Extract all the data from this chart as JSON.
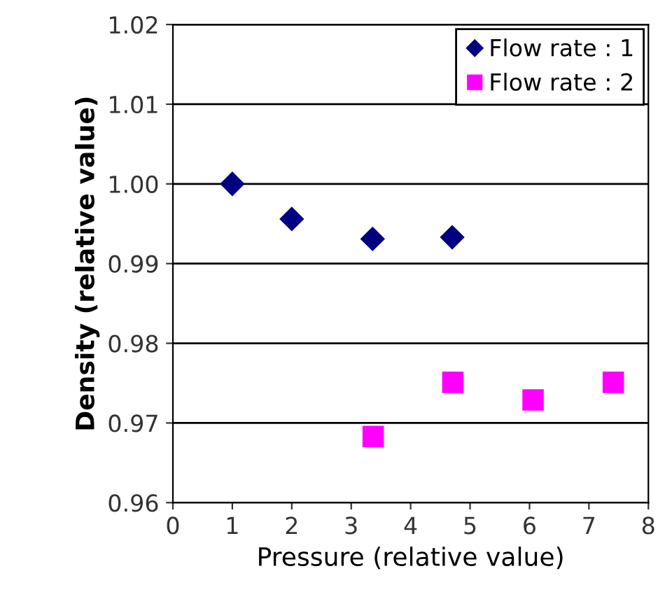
{
  "chart_data": {
    "type": "scatter",
    "xlabel": "Pressure (relative value)",
    "ylabel": "Density (relative value)",
    "xlim": [
      0,
      8
    ],
    "xticks": [
      0,
      1,
      2,
      3,
      4,
      5,
      6,
      7,
      8
    ],
    "ylim": [
      0.96,
      1.02
    ],
    "yticks": [
      {
        "value": 0.96,
        "label": "0.96"
      },
      {
        "value": 0.97,
        "label": "0.97"
      },
      {
        "value": 0.98,
        "label": "0.98"
      },
      {
        "value": 0.99,
        "label": "0.99"
      },
      {
        "value": 1.0,
        "label": "1.00"
      },
      {
        "value": 1.01,
        "label": "1.01"
      },
      {
        "value": 1.02,
        "label": "1.02"
      }
    ],
    "grid": "y",
    "legend": "top right",
    "series": [
      {
        "name": "Flow rate : 1",
        "color": "#000080",
        "marker": "diamond",
        "x": [
          1.0,
          2.0,
          3.36,
          4.7
        ],
        "values": [
          1.0,
          0.9956,
          0.9931,
          0.9933
        ]
      },
      {
        "name": "Flow rate : 2",
        "color": "#ff00ff",
        "marker": "square",
        "x": [
          3.37,
          4.71,
          6.06,
          7.41
        ],
        "values": [
          0.9683,
          0.9751,
          0.9729,
          0.9751
        ]
      }
    ]
  }
}
